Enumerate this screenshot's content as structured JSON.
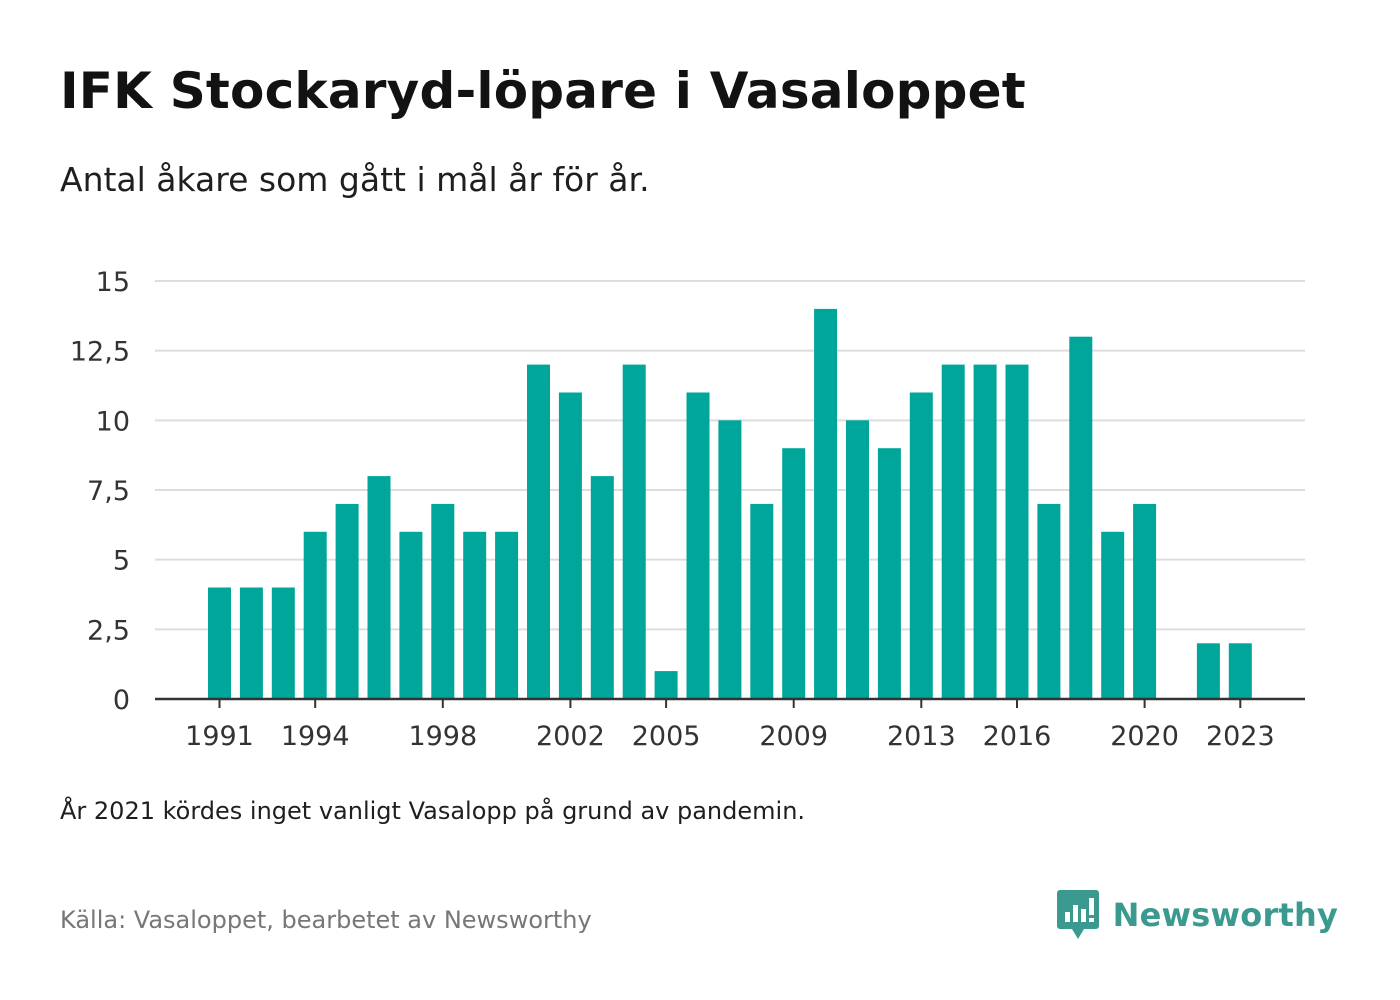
{
  "header": {
    "title": "IFK Stockaryd-löpare i Vasaloppet",
    "subtitle": "Antal åkare som gått i mål år för år."
  },
  "footer": {
    "note": "År 2021 kördes inget vanligt Vasalopp på grund av pandemin.",
    "source": "Källa: Vasaloppet, bearbetet av Newsworthy",
    "logo_text": "Newsworthy"
  },
  "colors": {
    "bar": "#00a699",
    "grid": "#dddddd",
    "axis": "#333333",
    "logo": "#3a9a90"
  },
  "chart_data": {
    "type": "bar",
    "title": "IFK Stockaryd-löpare i Vasaloppet",
    "subtitle": "Antal åkare som gått i mål år för år.",
    "xlabel": "",
    "ylabel": "",
    "ylim": [
      0,
      15
    ],
    "y_ticks": [
      "0",
      "2,5",
      "5",
      "7,5",
      "10",
      "12,5",
      "15"
    ],
    "y_tick_values": [
      0,
      2.5,
      5,
      7.5,
      10,
      12.5,
      15
    ],
    "x_tick_labels": [
      "1991",
      "1994",
      "1998",
      "2002",
      "2005",
      "2009",
      "2013",
      "2016",
      "2020",
      "2023"
    ],
    "grid": true,
    "categories": [
      1991,
      1992,
      1993,
      1994,
      1995,
      1996,
      1997,
      1998,
      1999,
      2000,
      2001,
      2002,
      2003,
      2004,
      2005,
      2006,
      2007,
      2008,
      2009,
      2010,
      2011,
      2012,
      2013,
      2014,
      2015,
      2016,
      2017,
      2018,
      2019,
      2020,
      2021,
      2022,
      2023
    ],
    "values": [
      4,
      4,
      4,
      6,
      7,
      8,
      6,
      7,
      6,
      6,
      12,
      11,
      8,
      12,
      1,
      11,
      10,
      7,
      9,
      14,
      10,
      9,
      11,
      12,
      12,
      12,
      7,
      13,
      6,
      7,
      null,
      2,
      2
    ]
  }
}
